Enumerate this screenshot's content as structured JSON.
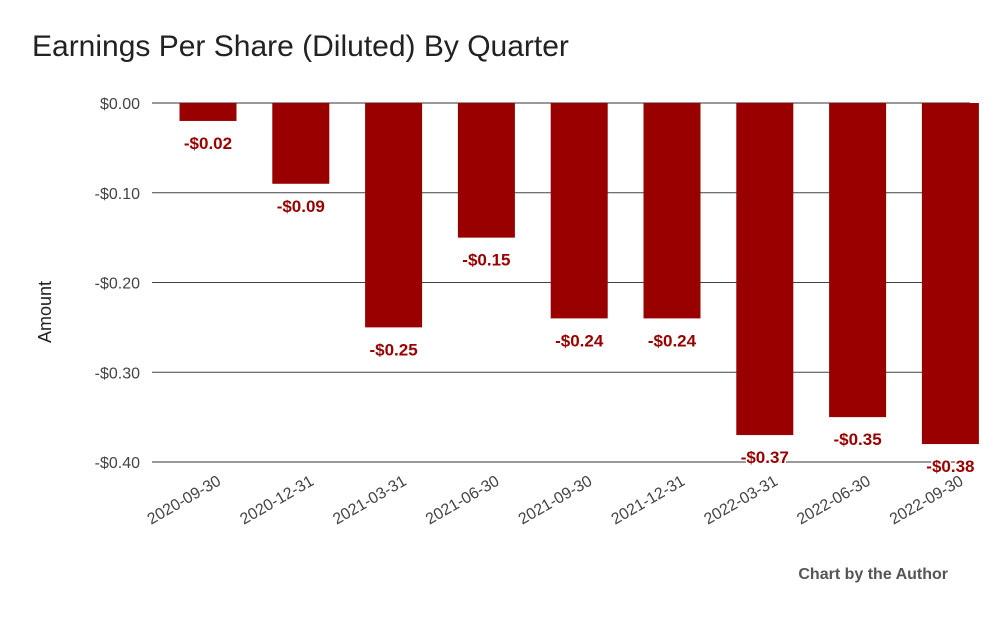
{
  "chart_data": {
    "type": "bar",
    "title": "Earnings Per Share (Diluted) By Quarter",
    "ylabel": "Amount",
    "xlabel": "",
    "categories": [
      "2020-09-30",
      "2020-12-31",
      "2021-03-31",
      "2021-06-30",
      "2021-09-30",
      "2021-12-31",
      "2022-03-31",
      "2022-06-30",
      "2022-09-30"
    ],
    "values": [
      -0.02,
      -0.09,
      -0.25,
      -0.15,
      -0.24,
      -0.24,
      -0.37,
      -0.35,
      -0.38
    ],
    "data_labels": [
      "-$0.02",
      "-$0.09",
      "-$0.25",
      "-$0.15",
      "-$0.24",
      "-$0.24",
      "-$0.37",
      "-$0.35",
      "-$0.38"
    ],
    "yticks": [
      0,
      -0.1,
      -0.2,
      -0.3,
      -0.4
    ],
    "ytick_labels": [
      "$0.00",
      "-$0.10",
      "-$0.20",
      "-$0.30",
      "-$0.40"
    ],
    "ylim": [
      -0.4,
      0
    ],
    "grid": true,
    "bar_color": "#990000",
    "label_color": "#990000"
  },
  "footer": {
    "credit": "Chart by the Author"
  }
}
